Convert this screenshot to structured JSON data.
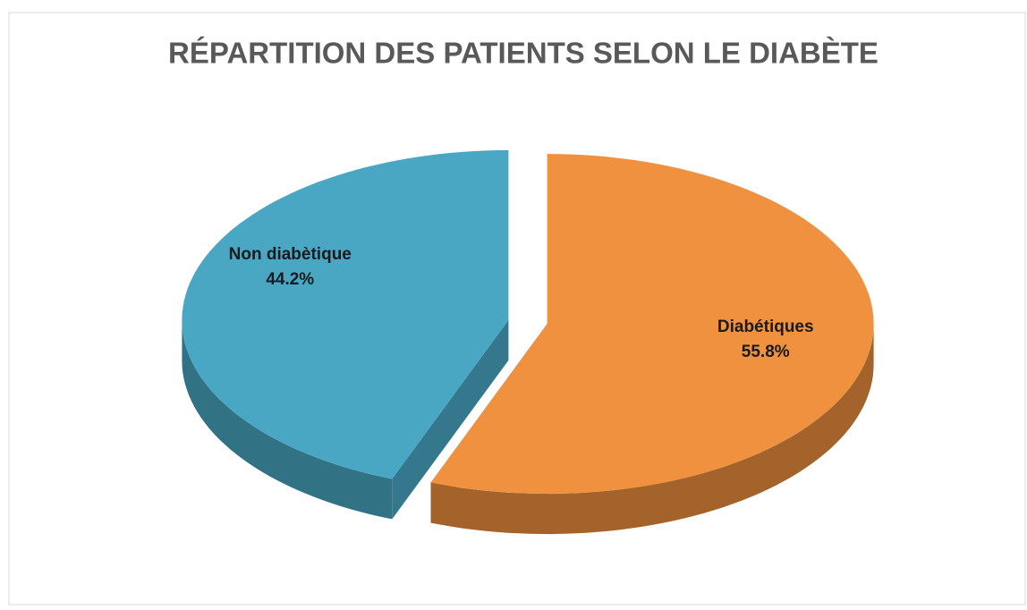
{
  "chart_data": {
    "type": "pie",
    "title": "RÉPARTITION DES PATIENTS SELON LE DIABÈTE",
    "categories": [
      "Diabétiques",
      "Non diabètique"
    ],
    "values": [
      55.8,
      44.2
    ],
    "value_labels": [
      "55.8%",
      "44.2%"
    ],
    "colors": [
      "#f0913f",
      "#4aa7c4"
    ]
  }
}
